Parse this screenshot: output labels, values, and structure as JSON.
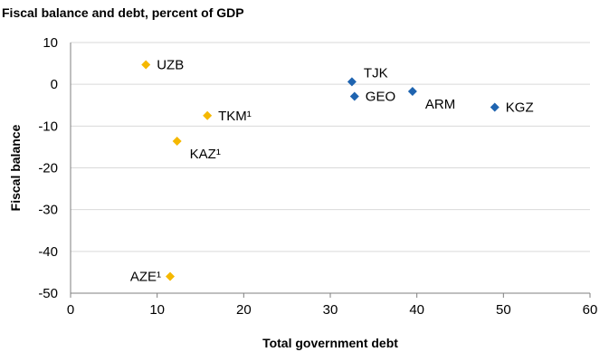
{
  "chart_data": {
    "type": "scatter",
    "title": "Fiscal balance and debt, percent of GDP",
    "xlabel": "Total government debt",
    "ylabel": "Fiscal balance",
    "xlim": [
      0,
      60
    ],
    "ylim": [
      -50,
      10
    ],
    "xticks": [
      "0",
      "10",
      "20",
      "30",
      "40",
      "50",
      "60"
    ],
    "yticks": [
      "10",
      "0",
      "-10",
      "-20",
      "-30",
      "-40",
      "-50"
    ],
    "grid": true,
    "legend": "none",
    "colors": {
      "group_a": "#f5b800",
      "group_b": "#1f64b0"
    },
    "points": [
      {
        "label": "UZB",
        "x": 8.7,
        "y": 4.7,
        "group": "group_a",
        "label_pos": "right"
      },
      {
        "label": "TKM¹",
        "x": 15.8,
        "y": -7.5,
        "group": "group_a",
        "label_pos": "right"
      },
      {
        "label": "KAZ¹",
        "x": 12.3,
        "y": -13.6,
        "group": "group_a",
        "label_pos": "below-right"
      },
      {
        "label": "AZE¹",
        "x": 11.5,
        "y": -46.0,
        "group": "group_a",
        "label_pos": "left"
      },
      {
        "label": "TJK",
        "x": 32.5,
        "y": 0.6,
        "group": "group_b",
        "label_pos": "above-right"
      },
      {
        "label": "GEO",
        "x": 32.8,
        "y": -2.9,
        "group": "group_b",
        "label_pos": "right"
      },
      {
        "label": "ARM",
        "x": 39.5,
        "y": -1.7,
        "group": "group_b",
        "label_pos": "below-right"
      },
      {
        "label": "KGZ",
        "x": 49.0,
        "y": -5.5,
        "group": "group_b",
        "label_pos": "right"
      }
    ]
  }
}
